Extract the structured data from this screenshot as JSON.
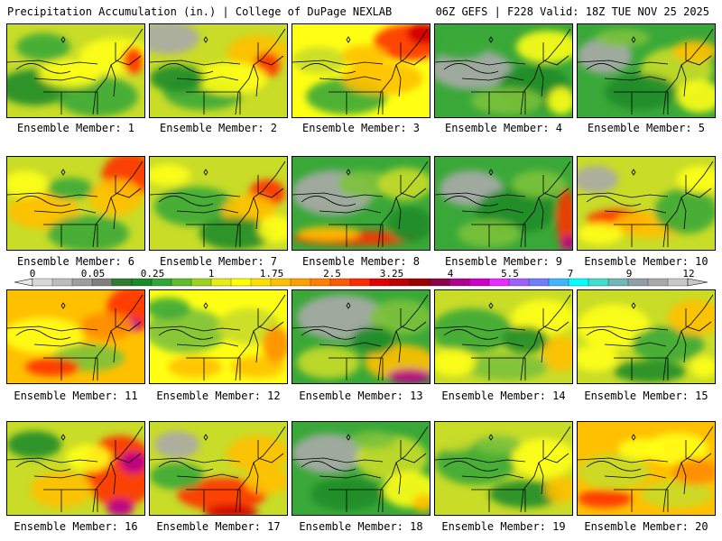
{
  "header": {
    "left": "Precipitation Accumulation (in.) | College of DuPage NEXLAB",
    "right": "06Z GEFS | F228 Valid: 18Z TUE NOV 25 2025"
  },
  "members": [
    {
      "label": "Ensemble Member: 1",
      "icon": "precip-map"
    },
    {
      "label": "Ensemble Member: 2",
      "icon": "precip-map"
    },
    {
      "label": "Ensemble Member: 3",
      "icon": "precip-map"
    },
    {
      "label": "Ensemble Member: 4",
      "icon": "precip-map"
    },
    {
      "label": "Ensemble Member: 5",
      "icon": "precip-map"
    },
    {
      "label": "Ensemble Member: 6",
      "icon": "precip-map"
    },
    {
      "label": "Ensemble Member: 7",
      "icon": "precip-map"
    },
    {
      "label": "Ensemble Member: 8",
      "icon": "precip-map"
    },
    {
      "label": "Ensemble Member: 9",
      "icon": "precip-map"
    },
    {
      "label": "Ensemble Member: 10",
      "icon": "precip-map"
    },
    {
      "label": "Ensemble Member: 11",
      "icon": "precip-map"
    },
    {
      "label": "Ensemble Member: 12",
      "icon": "precip-map"
    },
    {
      "label": "Ensemble Member: 13",
      "icon": "precip-map"
    },
    {
      "label": "Ensemble Member: 14",
      "icon": "precip-map"
    },
    {
      "label": "Ensemble Member: 15",
      "icon": "precip-map"
    },
    {
      "label": "Ensemble Member: 16",
      "icon": "precip-map"
    },
    {
      "label": "Ensemble Member: 17",
      "icon": "precip-map"
    },
    {
      "label": "Ensemble Member: 18",
      "icon": "precip-map"
    },
    {
      "label": "Ensemble Member: 19",
      "icon": "precip-map"
    },
    {
      "label": "Ensemble Member: 20",
      "icon": "precip-map"
    }
  ],
  "colorbar": {
    "ticks": [
      "0",
      "0.05",
      "0.25",
      "1",
      "1.75",
      "2.5",
      "3.25",
      "4",
      "5.5",
      "7",
      "9",
      "12"
    ],
    "colors": [
      "#d8d8d8",
      "#bdbdbd",
      "#9e9e9e",
      "#7f7f7f",
      "#2e7d32",
      "#1b8a2a",
      "#2fa83a",
      "#5fbe2c",
      "#9fd21c",
      "#e6ee16",
      "#ffff00",
      "#ffdf00",
      "#ffc000",
      "#ffa000",
      "#ff7f00",
      "#ff5a00",
      "#ff2a00",
      "#e60000",
      "#c00000",
      "#9e0000",
      "#8b0047",
      "#b0008f",
      "#d000c8",
      "#e82cff",
      "#a060ff",
      "#6f7dff",
      "#3fb7ff",
      "#00ffff",
      "#40e0d0",
      "#6fb8b8",
      "#8f9fa8",
      "#a9a9a9",
      "#c8c8c8"
    ]
  },
  "palette": {
    "gray": "#aaaaaa",
    "dkgreen": "#1e8c2a",
    "green": "#3aa838",
    "ltgreen": "#7cc23a",
    "yellowgreen": "#c8dc28",
    "yellow": "#ffff14",
    "orange": "#ffc000",
    "dkorange": "#ff8c00",
    "red": "#ff3000",
    "dkred": "#d00000",
    "magenta": "#b8008c"
  }
}
